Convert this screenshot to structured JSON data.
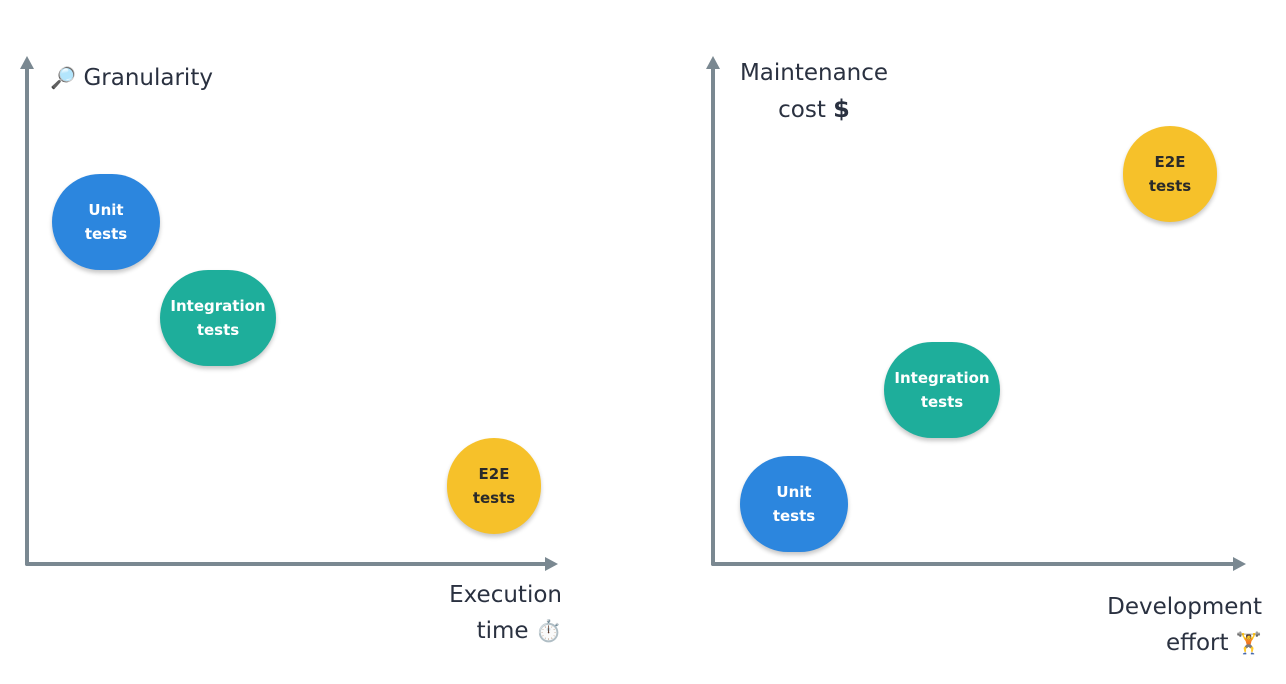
{
  "left_chart": {
    "y_axis": {
      "icon": "🔎",
      "label": "Granularity"
    },
    "x_axis": {
      "line1": "Execution",
      "line2": "time",
      "icon": "⏱️"
    },
    "bubbles": {
      "unit": {
        "line1": "Unit",
        "line2": "tests"
      },
      "integration": {
        "line1": "Integration",
        "line2": "tests"
      },
      "e2e": {
        "line1": "E2E",
        "line2": "tests"
      }
    }
  },
  "right_chart": {
    "y_axis": {
      "line1": "Maintenance",
      "line2": "cost",
      "icon": "$"
    },
    "x_axis": {
      "line1": "Development",
      "line2": "effort",
      "icon": "🏋️"
    },
    "bubbles": {
      "unit": {
        "line1": "Unit",
        "line2": "tests"
      },
      "integration": {
        "line1": "Integration",
        "line2": "tests"
      },
      "e2e": {
        "line1": "E2E",
        "line2": "tests"
      }
    }
  },
  "colors": {
    "axis": "#7a8891",
    "unit": "#2c86de",
    "integration": "#1eae9b",
    "e2e": "#f6c12a",
    "text": "#2a3140"
  }
}
